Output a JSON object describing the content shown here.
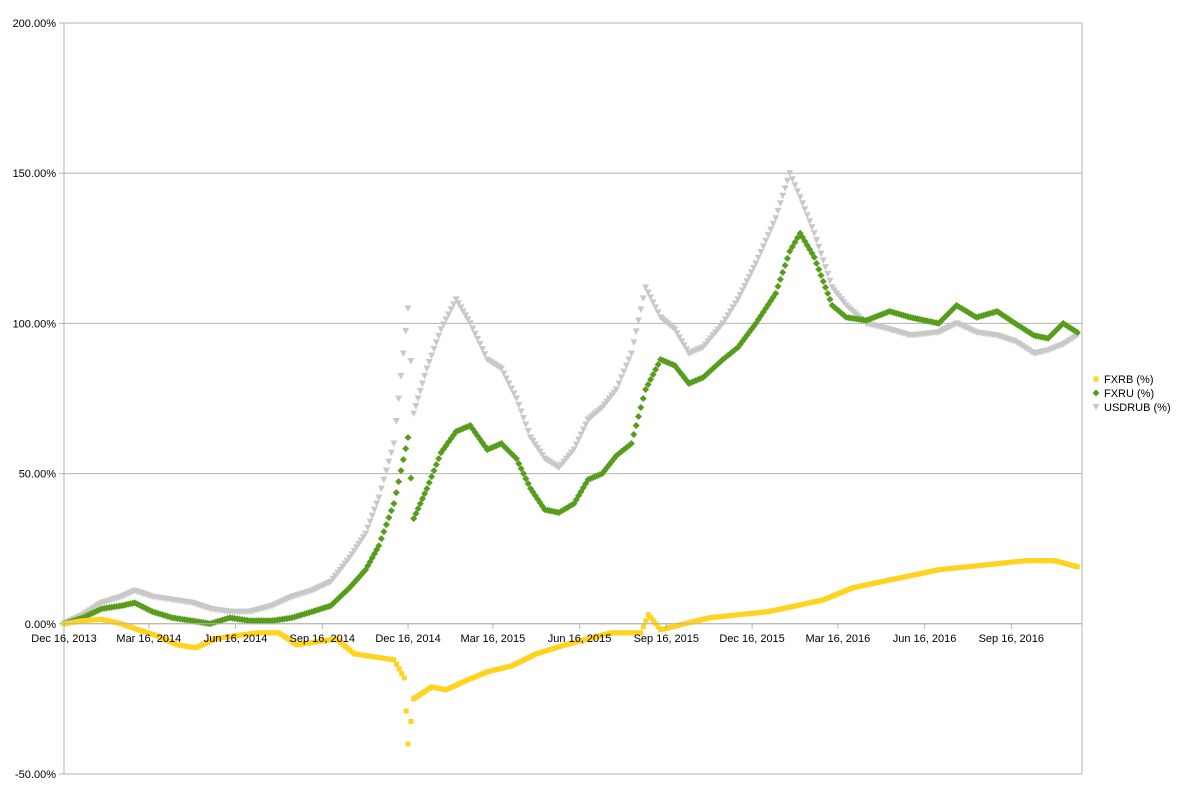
{
  "chart_data": {
    "type": "scatter",
    "title": "",
    "xlabel": "",
    "ylabel": "",
    "x_axis": {
      "type": "date",
      "range": [
        "2013-12-16",
        "2016-11-30"
      ],
      "tick_labels": [
        "Dec 16, 2013",
        "Mar 16, 2014",
        "Jun 16, 2014",
        "Sep 16, 2014",
        "Dec 16, 2014",
        "Mar 16, 2015",
        "Jun 16, 2015",
        "Sep 16, 2015",
        "Dec 16, 2015",
        "Mar 16, 2016",
        "Jun 16, 2016",
        "Sep 16, 2016"
      ],
      "tick_dates": [
        "2013-12-16",
        "2014-03-16",
        "2014-06-16",
        "2014-09-16",
        "2014-12-16",
        "2015-03-16",
        "2015-06-16",
        "2015-09-16",
        "2015-12-16",
        "2016-03-16",
        "2016-06-16",
        "2016-09-16"
      ]
    },
    "y_axis": {
      "ylim": [
        -50,
        200
      ],
      "ticks": [
        -50,
        0,
        50,
        100,
        150,
        200
      ],
      "tick_labels": [
        "-50.00%",
        "0.00%",
        "50.00%",
        "100.00%",
        "150.00%",
        "200.00%"
      ]
    },
    "grid": true,
    "legend_position": "right",
    "series": [
      {
        "name": "FXRB (%)",
        "color": "#ffd320",
        "marker": "square",
        "points": [
          [
            "2013-12-16",
            0
          ],
          [
            "2014-01-05",
            1
          ],
          [
            "2014-01-25",
            1.5
          ],
          [
            "2014-02-15",
            0
          ],
          [
            "2014-03-05",
            -2
          ],
          [
            "2014-03-25",
            -4
          ],
          [
            "2014-04-15",
            -7
          ],
          [
            "2014-05-05",
            -8
          ],
          [
            "2014-05-25",
            -5
          ],
          [
            "2014-06-15",
            -4
          ],
          [
            "2014-07-10",
            -3
          ],
          [
            "2014-08-01",
            -3
          ],
          [
            "2014-08-20",
            -7
          ],
          [
            "2014-09-10",
            -6
          ],
          [
            "2014-10-01",
            -5
          ],
          [
            "2014-10-20",
            -10
          ],
          [
            "2014-11-10",
            -11
          ],
          [
            "2014-12-01",
            -12
          ],
          [
            "2014-12-12",
            -18
          ],
          [
            "2014-12-16",
            -40
          ],
          [
            "2014-12-22",
            -25
          ],
          [
            "2015-01-10",
            -21
          ],
          [
            "2015-01-25",
            -22
          ],
          [
            "2015-02-15",
            -19
          ],
          [
            "2015-03-10",
            -16
          ],
          [
            "2015-04-05",
            -14
          ],
          [
            "2015-05-01",
            -10
          ],
          [
            "2015-06-01",
            -7
          ],
          [
            "2015-06-25",
            -5
          ],
          [
            "2015-07-20",
            -3
          ],
          [
            "2015-08-20",
            -3
          ],
          [
            "2015-08-28",
            3
          ],
          [
            "2015-09-10",
            -2
          ],
          [
            "2015-10-05",
            0
          ],
          [
            "2015-11-01",
            2
          ],
          [
            "2015-12-01",
            3
          ],
          [
            "2016-01-01",
            4
          ],
          [
            "2016-02-01",
            6
          ],
          [
            "2016-03-01",
            8
          ],
          [
            "2016-04-01",
            12
          ],
          [
            "2016-05-01",
            14
          ],
          [
            "2016-06-01",
            16
          ],
          [
            "2016-07-01",
            18
          ],
          [
            "2016-08-01",
            19
          ],
          [
            "2016-09-01",
            20
          ],
          [
            "2016-10-01",
            21
          ],
          [
            "2016-11-01",
            21
          ],
          [
            "2016-11-25",
            19
          ]
        ]
      },
      {
        "name": "FXRU (%)",
        "color": "#579d1c",
        "marker": "diamond",
        "points": [
          [
            "2013-12-16",
            0
          ],
          [
            "2014-01-05",
            2
          ],
          [
            "2014-01-25",
            5
          ],
          [
            "2014-02-15",
            6
          ],
          [
            "2014-03-01",
            7
          ],
          [
            "2014-03-20",
            4
          ],
          [
            "2014-04-10",
            2
          ],
          [
            "2014-05-01",
            1
          ],
          [
            "2014-05-20",
            0
          ],
          [
            "2014-06-10",
            2
          ],
          [
            "2014-07-01",
            1
          ],
          [
            "2014-07-25",
            1
          ],
          [
            "2014-08-15",
            2
          ],
          [
            "2014-09-05",
            4
          ],
          [
            "2014-09-25",
            6
          ],
          [
            "2014-10-15",
            12
          ],
          [
            "2014-11-01",
            18
          ],
          [
            "2014-11-15",
            26
          ],
          [
            "2014-12-01",
            40
          ],
          [
            "2014-12-16",
            62
          ],
          [
            "2014-12-22",
            35
          ],
          [
            "2015-01-05",
            45
          ],
          [
            "2015-01-20",
            57
          ],
          [
            "2015-02-05",
            64
          ],
          [
            "2015-02-20",
            66
          ],
          [
            "2015-03-10",
            58
          ],
          [
            "2015-03-25",
            60
          ],
          [
            "2015-04-10",
            55
          ],
          [
            "2015-04-25",
            45
          ],
          [
            "2015-05-10",
            38
          ],
          [
            "2015-05-25",
            37
          ],
          [
            "2015-06-10",
            40
          ],
          [
            "2015-06-25",
            48
          ],
          [
            "2015-07-10",
            50
          ],
          [
            "2015-07-25",
            56
          ],
          [
            "2015-08-10",
            60
          ],
          [
            "2015-08-25",
            78
          ],
          [
            "2015-09-10",
            88
          ],
          [
            "2015-09-25",
            86
          ],
          [
            "2015-10-10",
            80
          ],
          [
            "2015-10-25",
            82
          ],
          [
            "2015-11-15",
            88
          ],
          [
            "2015-12-01",
            92
          ],
          [
            "2015-12-20",
            100
          ],
          [
            "2016-01-10",
            110
          ],
          [
            "2016-01-25",
            124
          ],
          [
            "2016-02-05",
            130
          ],
          [
            "2016-02-20",
            122
          ],
          [
            "2016-03-10",
            106
          ],
          [
            "2016-03-25",
            102
          ],
          [
            "2016-04-15",
            101
          ],
          [
            "2016-05-10",
            104
          ],
          [
            "2016-06-01",
            102
          ],
          [
            "2016-07-01",
            100
          ],
          [
            "2016-07-20",
            106
          ],
          [
            "2016-08-10",
            102
          ],
          [
            "2016-09-01",
            104
          ],
          [
            "2016-09-20",
            100
          ],
          [
            "2016-10-10",
            96
          ],
          [
            "2016-10-25",
            95
          ],
          [
            "2016-11-10",
            100
          ],
          [
            "2016-11-25",
            97
          ]
        ]
      },
      {
        "name": "USDRUB (%)",
        "color": "#c8c8c8",
        "marker": "triangle-down",
        "points": [
          [
            "2013-12-16",
            0
          ],
          [
            "2014-01-05",
            3
          ],
          [
            "2014-01-25",
            7
          ],
          [
            "2014-02-15",
            9
          ],
          [
            "2014-03-01",
            11
          ],
          [
            "2014-03-20",
            9
          ],
          [
            "2014-04-10",
            8
          ],
          [
            "2014-05-01",
            7
          ],
          [
            "2014-05-20",
            5
          ],
          [
            "2014-06-10",
            4
          ],
          [
            "2014-07-01",
            4
          ],
          [
            "2014-07-25",
            6
          ],
          [
            "2014-08-15",
            9
          ],
          [
            "2014-09-05",
            11
          ],
          [
            "2014-09-25",
            14
          ],
          [
            "2014-10-15",
            22
          ],
          [
            "2014-11-01",
            30
          ],
          [
            "2014-11-15",
            42
          ],
          [
            "2014-12-01",
            60
          ],
          [
            "2014-12-16",
            105
          ],
          [
            "2014-12-22",
            70
          ],
          [
            "2015-01-05",
            85
          ],
          [
            "2015-01-20",
            98
          ],
          [
            "2015-02-05",
            108
          ],
          [
            "2015-02-20",
            100
          ],
          [
            "2015-03-10",
            88
          ],
          [
            "2015-03-25",
            85
          ],
          [
            "2015-04-10",
            75
          ],
          [
            "2015-04-25",
            62
          ],
          [
            "2015-05-10",
            55
          ],
          [
            "2015-05-25",
            52
          ],
          [
            "2015-06-10",
            58
          ],
          [
            "2015-06-25",
            68
          ],
          [
            "2015-07-10",
            72
          ],
          [
            "2015-07-25",
            78
          ],
          [
            "2015-08-10",
            90
          ],
          [
            "2015-08-25",
            112
          ],
          [
            "2015-09-10",
            102
          ],
          [
            "2015-09-25",
            98
          ],
          [
            "2015-10-10",
            90
          ],
          [
            "2015-10-25",
            92
          ],
          [
            "2015-11-15",
            100
          ],
          [
            "2015-12-01",
            108
          ],
          [
            "2015-12-20",
            120
          ],
          [
            "2016-01-10",
            135
          ],
          [
            "2016-01-25",
            150
          ],
          [
            "2016-02-05",
            142
          ],
          [
            "2016-02-20",
            130
          ],
          [
            "2016-03-10",
            112
          ],
          [
            "2016-03-25",
            106
          ],
          [
            "2016-04-15",
            100
          ],
          [
            "2016-05-10",
            98
          ],
          [
            "2016-06-01",
            96
          ],
          [
            "2016-07-01",
            97
          ],
          [
            "2016-07-20",
            100
          ],
          [
            "2016-08-10",
            97
          ],
          [
            "2016-09-01",
            96
          ],
          [
            "2016-09-20",
            94
          ],
          [
            "2016-10-10",
            90
          ],
          [
            "2016-10-25",
            91
          ],
          [
            "2016-11-10",
            93
          ],
          [
            "2016-11-25",
            96
          ]
        ]
      }
    ]
  }
}
